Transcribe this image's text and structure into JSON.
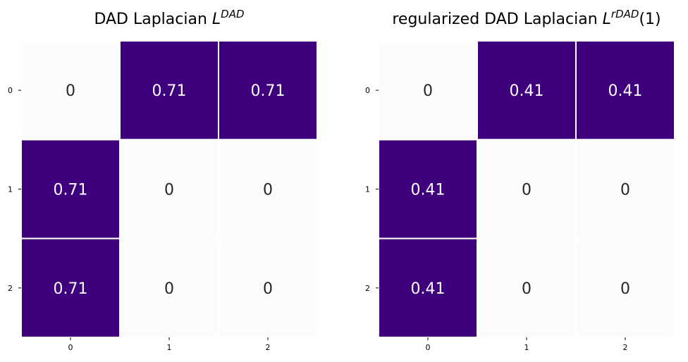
{
  "chart_data": [
    {
      "type": "heatmap",
      "title": "DAD Laplacian L",
      "title_superscript": "DAD",
      "title_suffix": "",
      "x_ticks": [
        "0",
        "1",
        "2"
      ],
      "y_ticks": [
        "0",
        "1",
        "2"
      ],
      "values": [
        [
          0,
          0.71,
          0.71
        ],
        [
          0.71,
          0,
          0
        ],
        [
          0.71,
          0,
          0
        ]
      ],
      "labels": [
        [
          "0",
          "0.71",
          "0.71"
        ],
        [
          "0.71",
          "0",
          "0"
        ],
        [
          "0.71",
          "0",
          "0"
        ]
      ],
      "vmin": 0,
      "vmax": 0.71,
      "colormap": "Purples",
      "low_color": "#fcfbfd",
      "high_color": "#3f007d",
      "colorbar": false
    },
    {
      "type": "heatmap",
      "title": "regularized DAD Laplacian L",
      "title_superscript": "rDAD",
      "title_suffix": "(1)",
      "x_ticks": [
        "0",
        "1",
        "2"
      ],
      "y_ticks": [
        "0",
        "1",
        "2"
      ],
      "values": [
        [
          0,
          0.41,
          0.41
        ],
        [
          0.41,
          0,
          0
        ],
        [
          0.41,
          0,
          0
        ]
      ],
      "labels": [
        [
          "0",
          "0.41",
          "0.41"
        ],
        [
          "0.41",
          "0",
          "0"
        ],
        [
          "0.41",
          "0",
          "0"
        ]
      ],
      "vmin": 0,
      "vmax": 0.41,
      "colormap": "Purples",
      "low_color": "#fcfbfd",
      "high_color": "#3f007d",
      "colorbar": false
    }
  ]
}
